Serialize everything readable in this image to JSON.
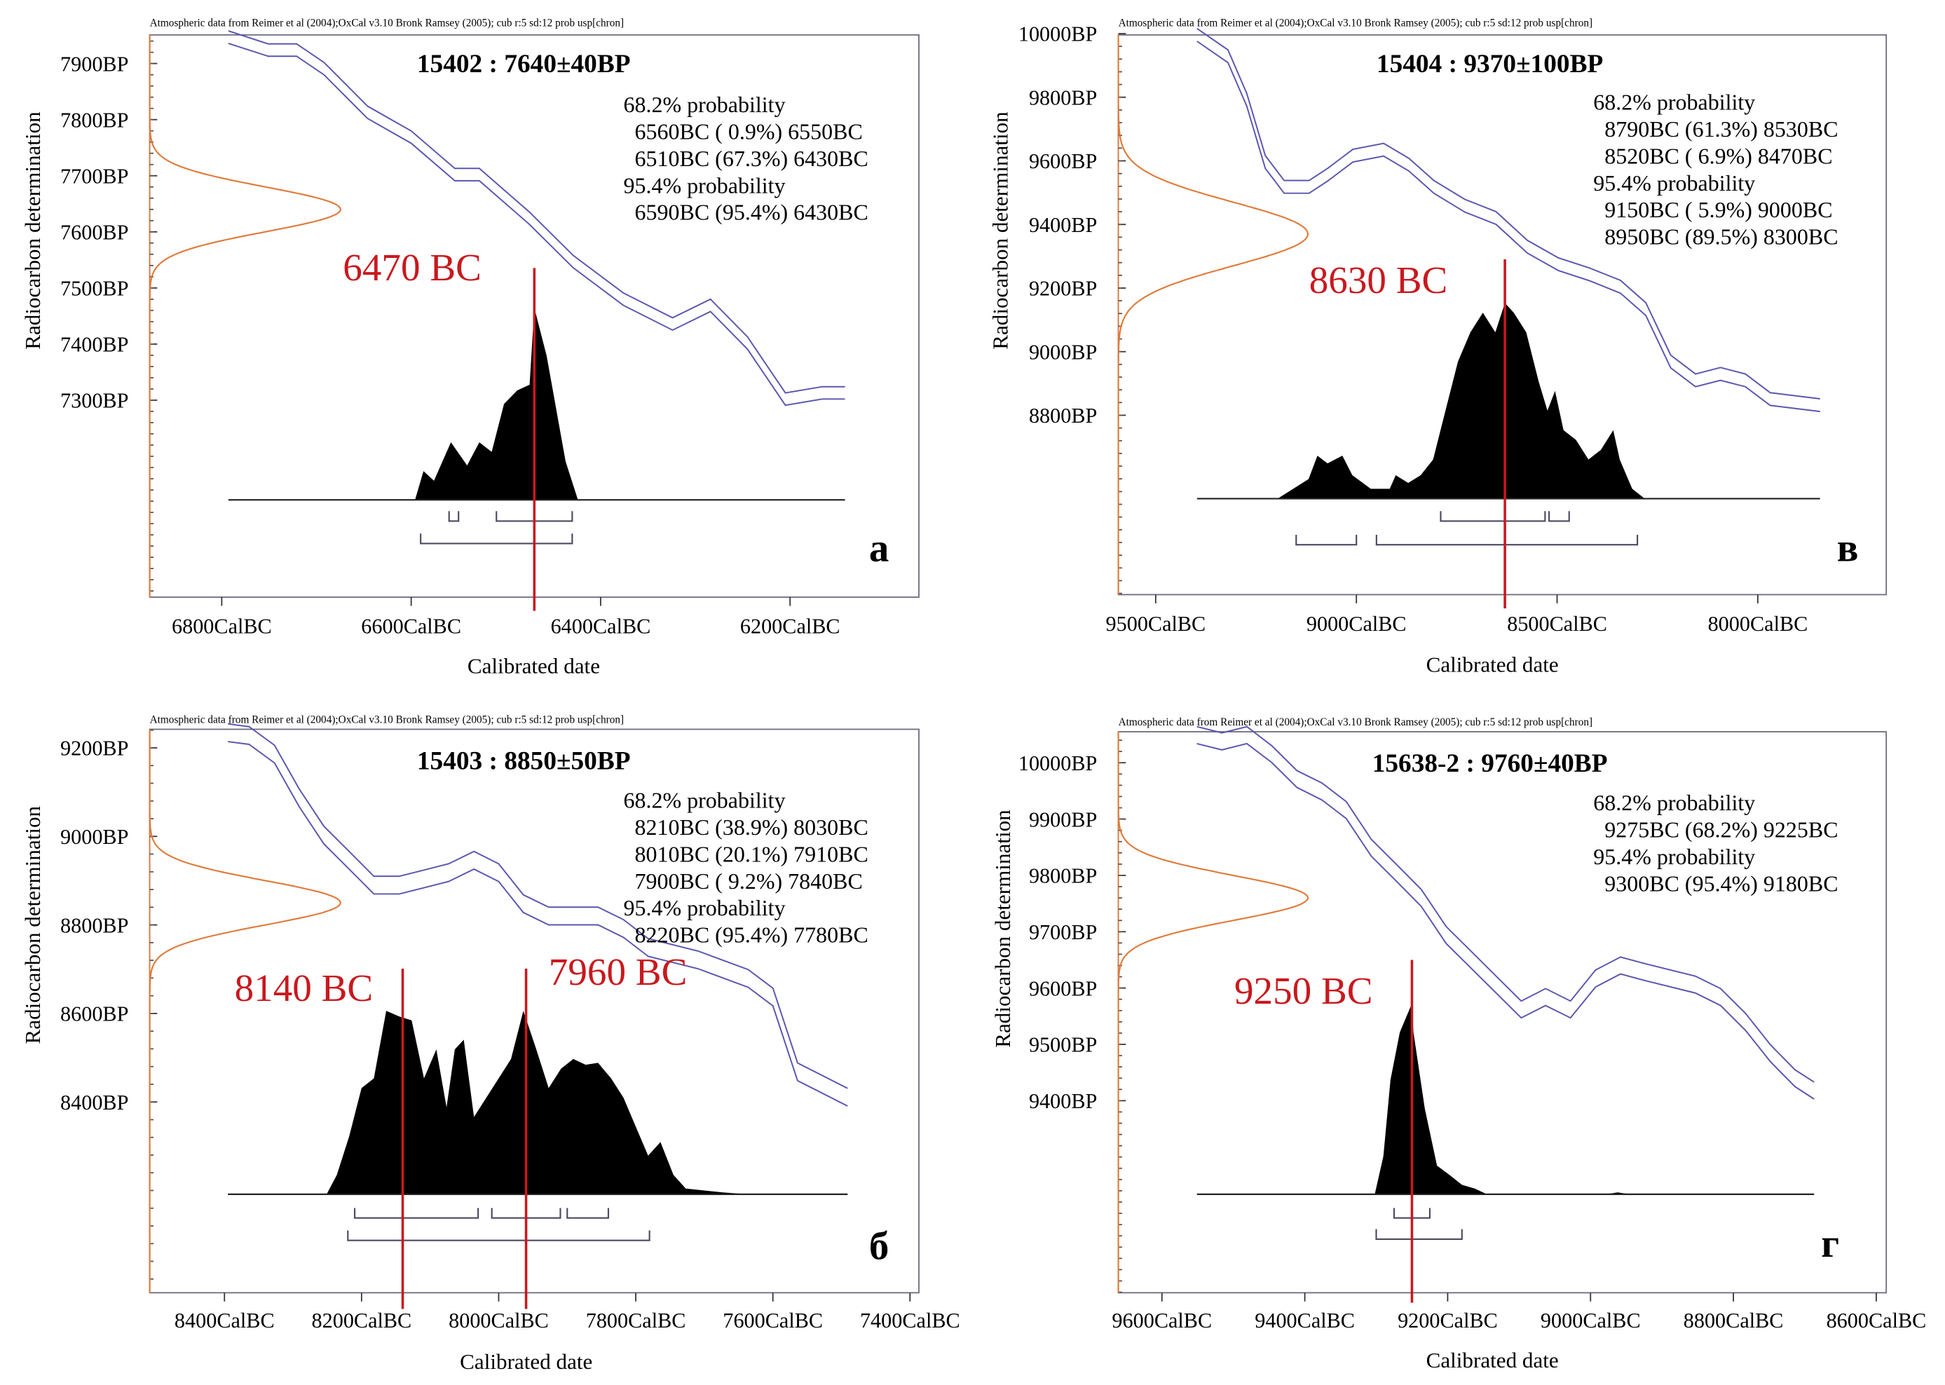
{
  "colors": {
    "calibration_curve": "#5a55b0",
    "gaussian": "#e07a3a",
    "distribution": "#000000",
    "median_line": "#c8191e",
    "brackets": "#4a4a60",
    "frame": "#6a6a80"
  },
  "chart_data": [
    {
      "type": "area",
      "panel_letter": "а",
      "header": "Atmospheric data from Reimer et al (2004);OxCal v3.10 Bronk Ramsey (2005); cub r:5 sd:12 prob usp[chron]",
      "title": "15402 : 7640±40BP",
      "xlabel": "Calibrated date",
      "ylabel": "Radiocarbon determination",
      "xlim": [
        6876,
        6064
      ],
      "ylim": [
        6949,
        7951
      ],
      "xticks": [
        {
          "v": 6800,
          "label": "6800CalBC"
        },
        {
          "v": 6600,
          "label": "6600CalBC"
        },
        {
          "v": 6400,
          "label": "6400CalBC"
        },
        {
          "v": 6200,
          "label": "6200CalBC"
        }
      ],
      "yticks": [
        {
          "v": 7900,
          "label": "7900BP"
        },
        {
          "v": 7800,
          "label": "7800BP"
        },
        {
          "v": 7700,
          "label": "7700BP"
        },
        {
          "v": 7600,
          "label": "7600BP"
        },
        {
          "v": 7500,
          "label": "7500BP"
        },
        {
          "v": 7400,
          "label": "7400BP"
        },
        {
          "v": 7300,
          "label": "7300BP"
        }
      ],
      "probability_text": [
        "68.2% probability",
        "  6560BC ( 0.9%) 6550BC",
        "  6510BC (67.3%) 6430BC",
        "95.4% probability",
        "  6590BC (95.4%) 6430BC"
      ],
      "ranges_68": [
        [
          6560,
          6550
        ],
        [
          6510,
          6430
        ]
      ],
      "ranges_95": [
        [
          6590,
          6430
        ]
      ],
      "radiocarbon": {
        "mean": 7640,
        "sd": 40
      },
      "median_labels": [
        {
          "bc": 6470,
          "label": "6470 BC"
        }
      ],
      "curve_band_bp": 22,
      "curve": [
        [
          6793,
          7947
        ],
        [
          6751,
          7924
        ],
        [
          6721,
          7924
        ],
        [
          6692,
          7891
        ],
        [
          6646,
          7813
        ],
        [
          6600,
          7769
        ],
        [
          6554,
          7702
        ],
        [
          6528,
          7702
        ],
        [
          6475,
          7624
        ],
        [
          6429,
          7547
        ],
        [
          6376,
          7480
        ],
        [
          6324,
          7436
        ],
        [
          6284,
          7469
        ],
        [
          6245,
          7402
        ],
        [
          6205,
          7302
        ],
        [
          6166,
          7313
        ],
        [
          6142,
          7313
        ]
      ],
      "distribution_range": [
        6793,
        6142
      ],
      "distribution": [
        [
          6596,
          0
        ],
        [
          6587,
          0.15
        ],
        [
          6576,
          0.1
        ],
        [
          6558,
          0.3
        ],
        [
          6541,
          0.18
        ],
        [
          6528,
          0.3
        ],
        [
          6515,
          0.25
        ],
        [
          6502,
          0.5
        ],
        [
          6488,
          0.57
        ],
        [
          6475,
          0.6
        ],
        [
          6470,
          1.0
        ],
        [
          6457,
          0.75
        ],
        [
          6437,
          0.2
        ],
        [
          6424,
          0
        ]
      ]
    },
    {
      "type": "area",
      "panel_letter": "в",
      "header": "Atmospheric data from Reimer et al (2004);OxCal v3.10 Bronk Ramsey (2005); cub r:5 sd:12 prob usp[chron]",
      "title": "15404 : 9370±100BP",
      "xlabel": "Calibrated date",
      "ylabel": "Radiocarbon determination",
      "xlim": [
        9593,
        7680
      ],
      "ylim": [
        8236,
        9996
      ],
      "xticks": [
        {
          "v": 9500,
          "label": "9500CalBC"
        },
        {
          "v": 9000,
          "label": "9000CalBC"
        },
        {
          "v": 8500,
          "label": "8500CalBC"
        },
        {
          "v": 8000,
          "label": "8000CalBC"
        }
      ],
      "yticks": [
        {
          "v": 10000,
          "label": "10000BP"
        },
        {
          "v": 9800,
          "label": "9800BP"
        },
        {
          "v": 9600,
          "label": "9600BP"
        },
        {
          "v": 9400,
          "label": "9400BP"
        },
        {
          "v": 9200,
          "label": "9200BP"
        },
        {
          "v": 9000,
          "label": "9000BP"
        },
        {
          "v": 8800,
          "label": "8800BP"
        }
      ],
      "probability_text": [
        "68.2% probability",
        "  8790BC (61.3%) 8530BC",
        "  8520BC ( 6.9%) 8470BC",
        "95.4% probability",
        "  9150BC ( 5.9%) 9000BC",
        "  8950BC (89.5%) 8300BC"
      ],
      "ranges_68": [
        [
          8790,
          8530
        ],
        [
          8520,
          8470
        ]
      ],
      "ranges_95": [
        [
          9150,
          9000
        ],
        [
          8950,
          8300
        ]
      ],
      "radiocarbon": {
        "mean": 9370,
        "sd": 100
      },
      "median_labels": [
        {
          "bc": 8630,
          "label": "8630 BC"
        }
      ],
      "curve_band_bp": 40,
      "curve": [
        [
          9397,
          9996
        ],
        [
          9320,
          9929
        ],
        [
          9273,
          9792
        ],
        [
          9227,
          9596
        ],
        [
          9180,
          9518
        ],
        [
          9118,
          9518
        ],
        [
          9071,
          9557
        ],
        [
          9009,
          9616
        ],
        [
          8932,
          9635
        ],
        [
          8869,
          9588
        ],
        [
          8807,
          9518
        ],
        [
          8730,
          9459
        ],
        [
          8652,
          9420
        ],
        [
          8574,
          9330
        ],
        [
          8497,
          9275
        ],
        [
          8419,
          9243
        ],
        [
          8342,
          9204
        ],
        [
          8279,
          9134
        ],
        [
          8217,
          8969
        ],
        [
          8155,
          8910
        ],
        [
          8093,
          8930
        ],
        [
          8031,
          8910
        ],
        [
          7969,
          8851
        ],
        [
          7845,
          8832
        ]
      ],
      "distribution_range": [
        9397,
        7845
      ],
      "distribution": [
        [
          9196,
          0
        ],
        [
          9119,
          0.1
        ],
        [
          9097,
          0.22
        ],
        [
          9072,
          0.18
        ],
        [
          9035,
          0.22
        ],
        [
          9010,
          0.12
        ],
        [
          8964,
          0.05
        ],
        [
          8917,
          0.05
        ],
        [
          8902,
          0.12
        ],
        [
          8871,
          0.08
        ],
        [
          8840,
          0.12
        ],
        [
          8809,
          0.2
        ],
        [
          8778,
          0.45
        ],
        [
          8747,
          0.7
        ],
        [
          8716,
          0.85
        ],
        [
          8685,
          0.95
        ],
        [
          8654,
          0.85
        ],
        [
          8630,
          1.0
        ],
        [
          8608,
          0.95
        ],
        [
          8577,
          0.85
        ],
        [
          8546,
          0.6
        ],
        [
          8524,
          0.45
        ],
        [
          8505,
          0.55
        ],
        [
          8484,
          0.35
        ],
        [
          8453,
          0.3
        ],
        [
          8422,
          0.2
        ],
        [
          8391,
          0.25
        ],
        [
          8360,
          0.35
        ],
        [
          8344,
          0.2
        ],
        [
          8313,
          0.05
        ],
        [
          8282,
          0
        ]
      ]
    },
    {
      "type": "area",
      "panel_letter": "б",
      "header": "Atmospheric data from Reimer et al (2004);OxCal v3.10 Bronk Ramsey (2005); cub r:5 sd:12 prob usp[chron]",
      "title": "15403 : 8850±50BP",
      "xlabel": "Calibrated date",
      "ylabel": "Radiocarbon determination",
      "xlim": [
        8509,
        7387
      ],
      "ylim": [
        7969,
        9242
      ],
      "xticks": [
        {
          "v": 8400,
          "label": "8400CalBC"
        },
        {
          "v": 8200,
          "label": "8200CalBC"
        },
        {
          "v": 8000,
          "label": "8000CalBC"
        },
        {
          "v": 7800,
          "label": "7800CalBC"
        },
        {
          "v": 7600,
          "label": "7600CalBC"
        },
        {
          "v": 7400,
          "label": "7400CalBC"
        }
      ],
      "yticks": [
        {
          "v": 9200,
          "label": "9200BP"
        },
        {
          "v": 9000,
          "label": "9000BP"
        },
        {
          "v": 8800,
          "label": "8800BP"
        },
        {
          "v": 8600,
          "label": "8600BP"
        },
        {
          "v": 8400,
          "label": "8400BP"
        }
      ],
      "probability_text": [
        "68.2% probability",
        "  8210BC (38.9%) 8030BC",
        "  8010BC (20.1%) 7910BC",
        "  7900BC ( 9.2%) 7840BC",
        "95.4% probability",
        "  8220BC (95.4%) 7780BC"
      ],
      "ranges_68": [
        [
          8210,
          8030
        ],
        [
          8010,
          7910
        ],
        [
          7900,
          7840
        ]
      ],
      "ranges_95": [
        [
          8220,
          7780
        ]
      ],
      "radiocarbon": {
        "mean": 8850,
        "sd": 50
      },
      "median_labels": [
        {
          "bc": 8140,
          "label": "8140 BC"
        },
        {
          "bc": 7960,
          "label": "7960 BC"
        }
      ],
      "curve_band_bp": 40,
      "curve": [
        [
          8395,
          9234
        ],
        [
          8364,
          9228
        ],
        [
          8327,
          9186
        ],
        [
          8291,
          9087
        ],
        [
          8255,
          9003
        ],
        [
          8218,
          8946
        ],
        [
          8182,
          8890
        ],
        [
          8145,
          8890
        ],
        [
          8109,
          8904
        ],
        [
          8073,
          8918
        ],
        [
          8036,
          8946
        ],
        [
          8000,
          8918
        ],
        [
          7964,
          8848
        ],
        [
          7927,
          8820
        ],
        [
          7855,
          8820
        ],
        [
          7818,
          8792
        ],
        [
          7782,
          8749
        ],
        [
          7709,
          8721
        ],
        [
          7636,
          8679
        ],
        [
          7600,
          8637
        ],
        [
          7564,
          8468
        ],
        [
          7527,
          8439
        ],
        [
          7491,
          8411
        ]
      ],
      "distribution_range": [
        8395,
        7491
      ],
      "distribution": [
        [
          8251,
          0
        ],
        [
          8236,
          0.1
        ],
        [
          8218,
          0.3
        ],
        [
          8200,
          0.55
        ],
        [
          8182,
          0.6
        ],
        [
          8164,
          0.95
        ],
        [
          8145,
          0.92
        ],
        [
          8127,
          0.9
        ],
        [
          8109,
          0.6
        ],
        [
          8091,
          0.75
        ],
        [
          8076,
          0.45
        ],
        [
          8064,
          0.75
        ],
        [
          8051,
          0.8
        ],
        [
          8036,
          0.4
        ],
        [
          8018,
          0.5
        ],
        [
          8000,
          0.6
        ],
        [
          7982,
          0.7
        ],
        [
          7964,
          0.95
        ],
        [
          7945,
          0.75
        ],
        [
          7927,
          0.55
        ],
        [
          7909,
          0.65
        ],
        [
          7891,
          0.7
        ],
        [
          7873,
          0.67
        ],
        [
          7855,
          0.68
        ],
        [
          7836,
          0.6
        ],
        [
          7818,
          0.5
        ],
        [
          7800,
          0.35
        ],
        [
          7782,
          0.2
        ],
        [
          7764,
          0.27
        ],
        [
          7745,
          0.1
        ],
        [
          7727,
          0.03
        ],
        [
          7673,
          0.01
        ],
        [
          7636,
          0
        ]
      ]
    },
    {
      "type": "area",
      "panel_letter": "г",
      "header": "Atmospheric data from Reimer et al (2004);OxCal v3.10 Bronk Ramsey (2005); cub r:5 sd:12 prob usp[chron]",
      "title": "15638-2 : 9760±40BP",
      "xlabel": "Calibrated date",
      "ylabel": "Radiocarbon determination",
      "xlim": [
        9661,
        8586
      ],
      "ylim": [
        9059,
        10055
      ],
      "xticks": [
        {
          "v": 9600,
          "label": "9600CalBC"
        },
        {
          "v": 9400,
          "label": "9400CalBC"
        },
        {
          "v": 9200,
          "label": "9200CalBC"
        },
        {
          "v": 9000,
          "label": "9000CalBC"
        },
        {
          "v": 8800,
          "label": "8800CalBC"
        },
        {
          "v": 8600,
          "label": "8600CalBC"
        }
      ],
      "yticks": [
        {
          "v": 10000,
          "label": "10000BP"
        },
        {
          "v": 9900,
          "label": "9900BP"
        },
        {
          "v": 9800,
          "label": "9800BP"
        },
        {
          "v": 9700,
          "label": "9700BP"
        },
        {
          "v": 9600,
          "label": "9600BP"
        },
        {
          "v": 9500,
          "label": "9500BP"
        },
        {
          "v": 9400,
          "label": "9400BP"
        }
      ],
      "probability_text": [
        "68.2% probability",
        "  9275BC (68.2%) 9225BC",
        "95.4% probability",
        "  9300BC (95.4%) 9180BC"
      ],
      "ranges_68": [
        [
          9275,
          9225
        ]
      ],
      "ranges_95": [
        [
          9300,
          9180
        ]
      ],
      "radiocarbon": {
        "mean": 9760,
        "sd": 40
      },
      "median_labels": [
        {
          "bc": 9250,
          "label": "9250 BC"
        }
      ],
      "curve_band_bp": 30,
      "curve": [
        [
          9551,
          10049
        ],
        [
          9516,
          10038
        ],
        [
          9481,
          10049
        ],
        [
          9446,
          10015
        ],
        [
          9411,
          9971
        ],
        [
          9376,
          9949
        ],
        [
          9342,
          9916
        ],
        [
          9307,
          9849
        ],
        [
          9272,
          9805
        ],
        [
          9237,
          9760
        ],
        [
          9202,
          9694
        ],
        [
          9167,
          9650
        ],
        [
          9132,
          9606
        ],
        [
          9097,
          9562
        ],
        [
          9063,
          9584
        ],
        [
          9028,
          9562
        ],
        [
          8993,
          9617
        ],
        [
          8958,
          9640
        ],
        [
          8923,
          9628
        ],
        [
          8853,
          9606
        ],
        [
          8818,
          9584
        ],
        [
          8783,
          9540
        ],
        [
          8748,
          9484
        ],
        [
          8714,
          9440
        ],
        [
          8687,
          9418
        ]
      ],
      "distribution_range": [
        9551,
        8687
      ],
      "distribution": [
        [
          9302,
          0
        ],
        [
          9290,
          0.2
        ],
        [
          9280,
          0.6
        ],
        [
          9267,
          0.85
        ],
        [
          9250,
          1.0
        ],
        [
          9248,
          0.85
        ],
        [
          9232,
          0.45
        ],
        [
          9215,
          0.15
        ],
        [
          9197,
          0.1
        ],
        [
          9180,
          0.05
        ],
        [
          9162,
          0.03
        ],
        [
          9145,
          0
        ],
        [
          8979,
          0
        ],
        [
          8962,
          0.01
        ],
        [
          8944,
          0
        ]
      ]
    }
  ]
}
